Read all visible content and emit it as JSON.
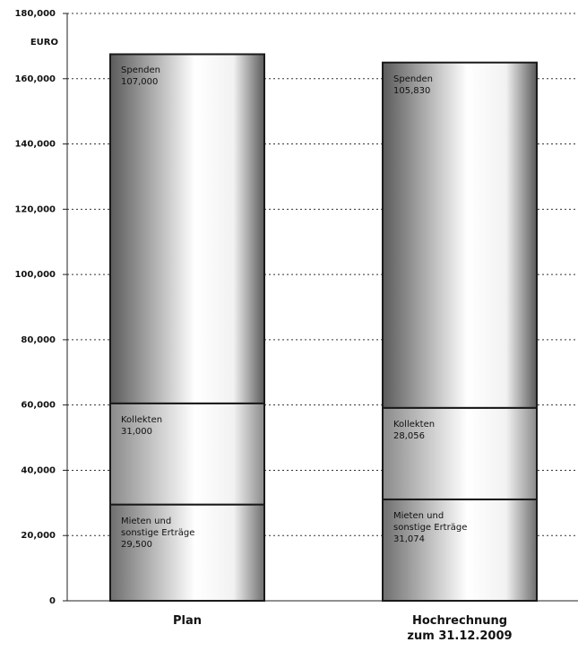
{
  "chart_data": {
    "type": "stacked_bar",
    "y_label": "EURO",
    "categories": [
      "Plan",
      "Hochrechnung\nzum 31.12.2009"
    ],
    "series": [
      {
        "name": "Mieten und\nsonstige Erträge",
        "color": "#6e6e6e",
        "values": [
          29500,
          31074
        ],
        "value_labels": [
          "29,500",
          "31,074"
        ]
      },
      {
        "name": "Kollekten",
        "color": "#8a8a8a",
        "values": [
          31000,
          28056
        ],
        "value_labels": [
          "31,000",
          "28,056"
        ]
      },
      {
        "name": "Spenden",
        "color": "#5a5a5a",
        "values": [
          107000,
          105830
        ],
        "value_labels": [
          "107,000",
          "105,830"
        ]
      }
    ],
    "ylim": [
      0,
      180000
    ],
    "yticks": [
      0,
      {
        "value": 20000,
        "label": "20,000"
      },
      {
        "value": 40000,
        "label": "40,000"
      },
      {
        "value": 60000,
        "label": "60,000"
      },
      {
        "value": 80000,
        "label": "80,000"
      },
      {
        "value": 100000,
        "label": "100,000"
      },
      {
        "value": 120000,
        "label": "120,000"
      },
      {
        "value": 140000,
        "label": "140,000"
      },
      {
        "value": 160000,
        "label": "160,000"
      },
      {
        "value": 180000,
        "label": "180,000"
      }
    ],
    "grid": true
  }
}
